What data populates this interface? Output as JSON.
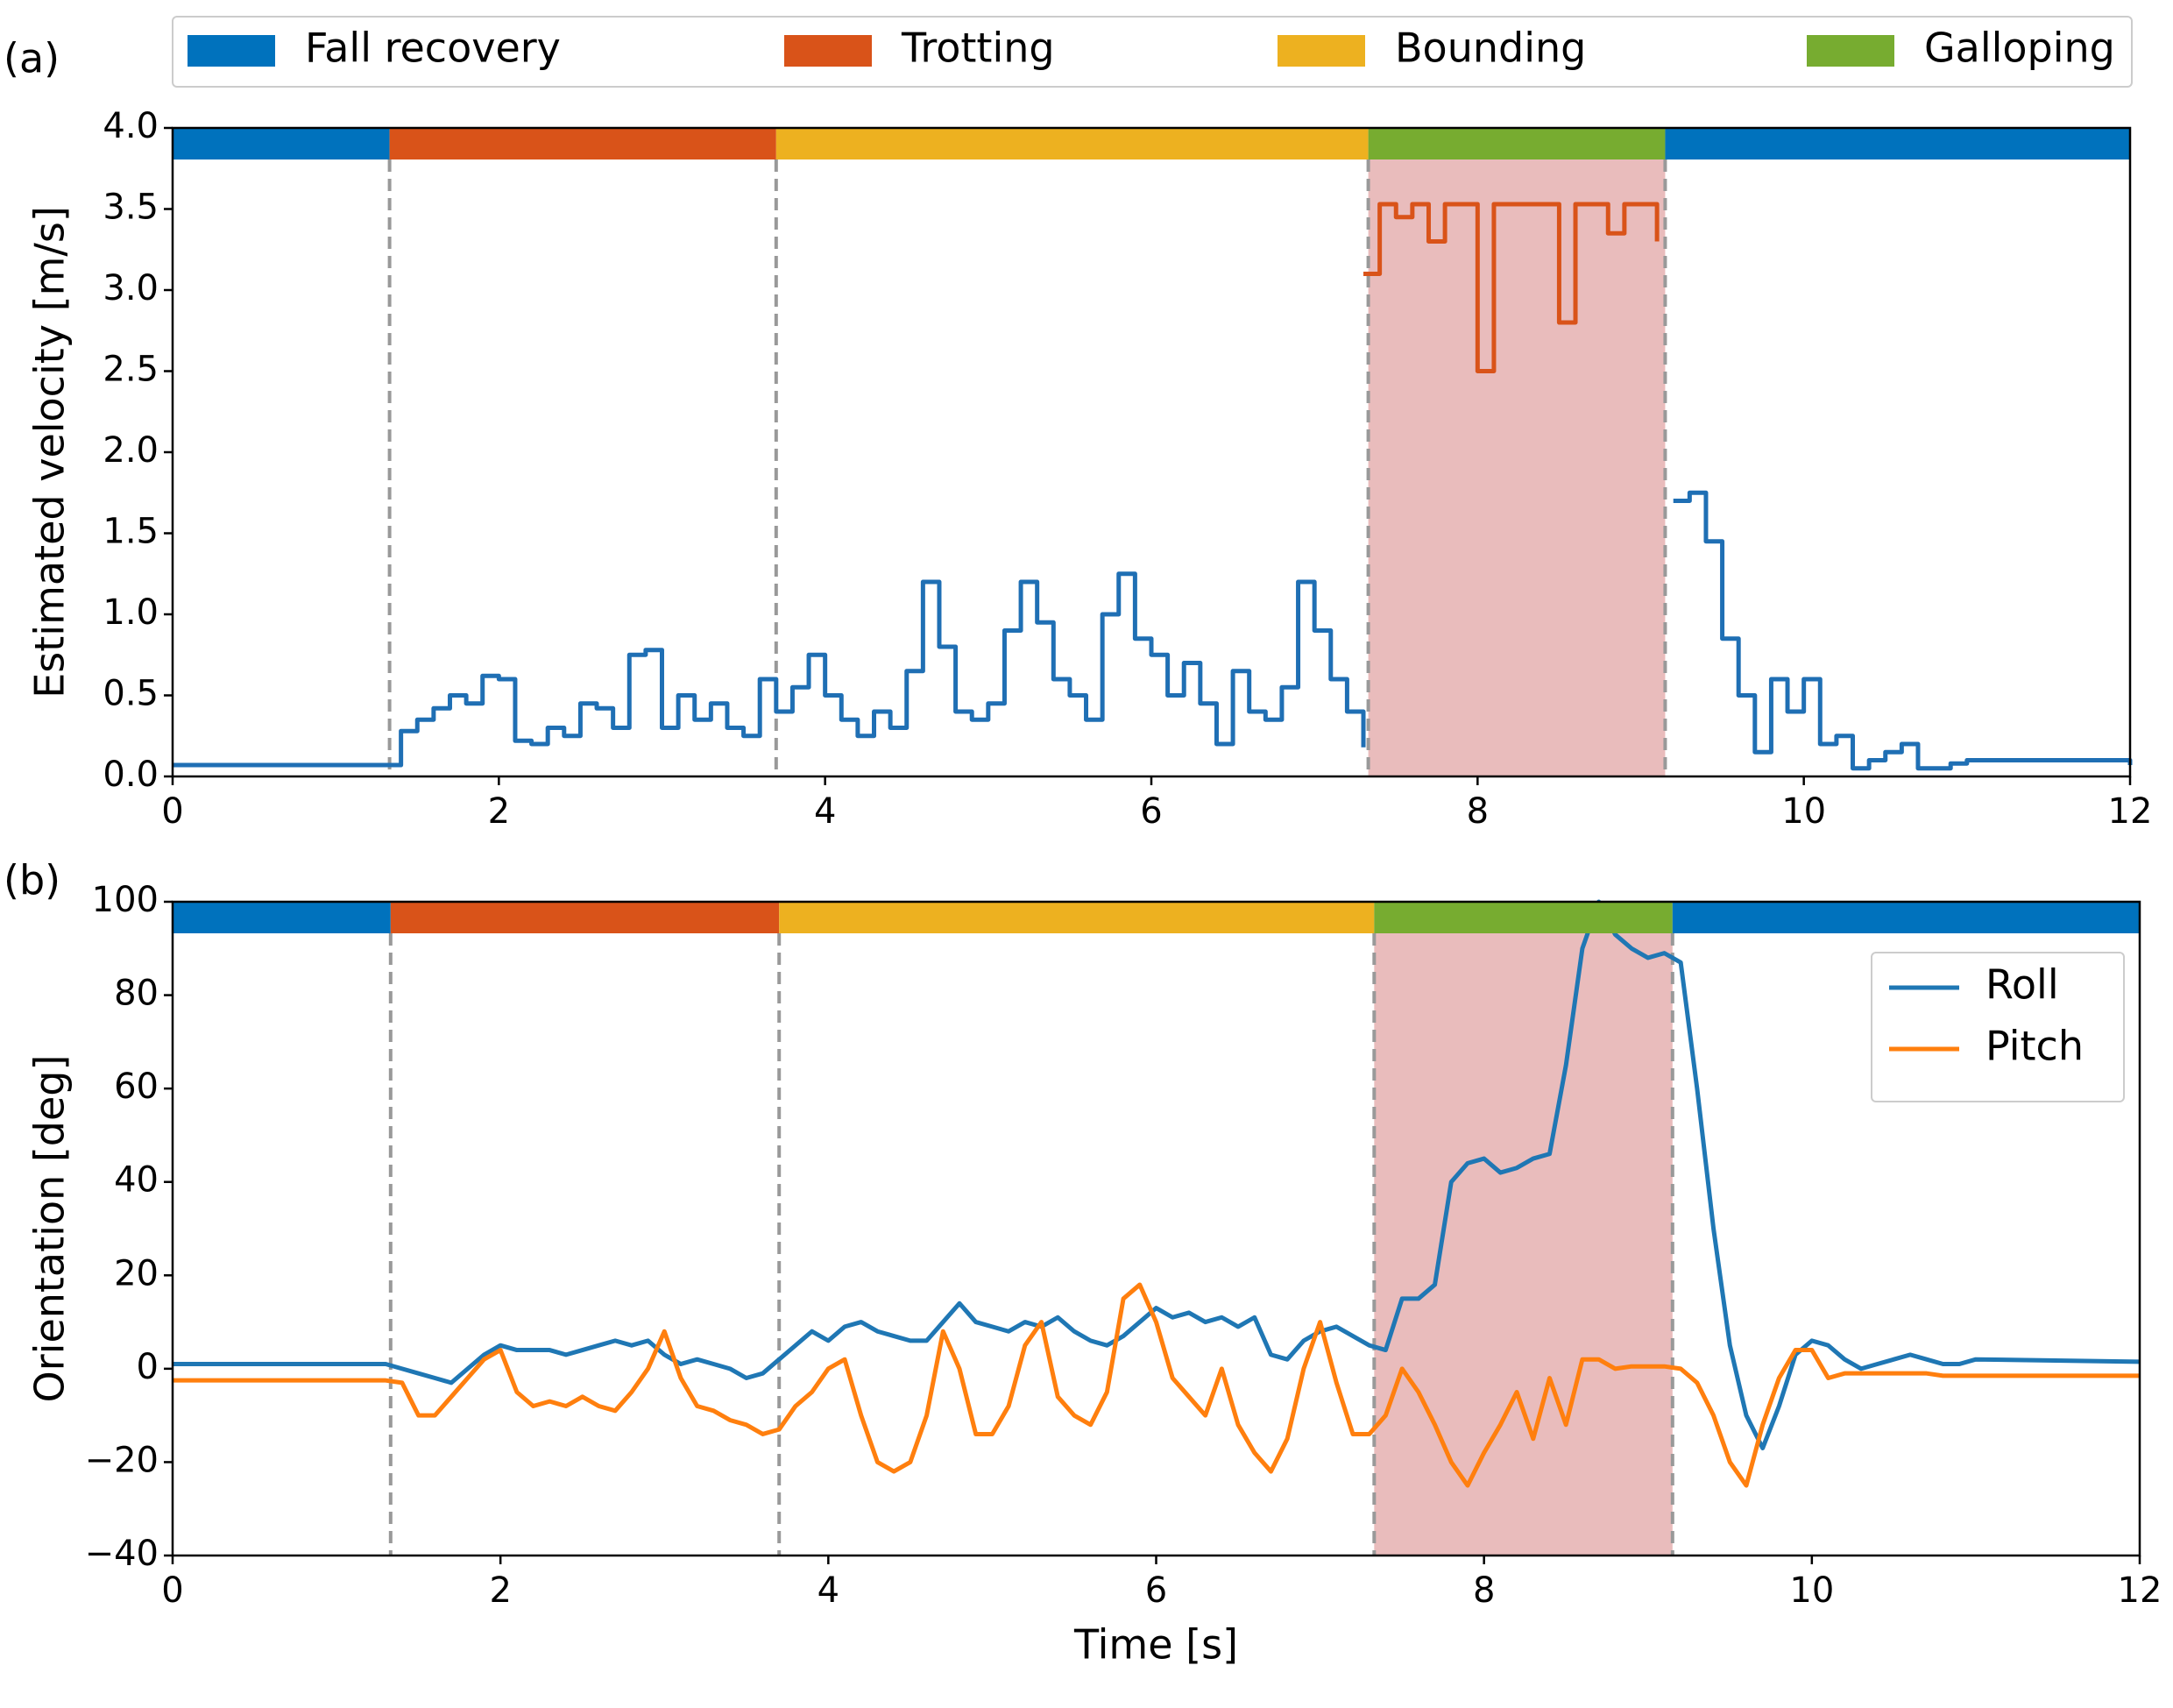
{
  "phase_legend": [
    {
      "name": "Fall recovery",
      "color": "#0072bd"
    },
    {
      "name": "Trotting",
      "color": "#d95319"
    },
    {
      "name": "Bounding",
      "color": "#edb120"
    },
    {
      "name": "Galloping",
      "color": "#77ac30"
    }
  ],
  "phases": [
    {
      "start": 0,
      "end": 1.33,
      "color": "#0072bd"
    },
    {
      "start": 1.33,
      "end": 3.7,
      "color": "#d95319"
    },
    {
      "start": 3.7,
      "end": 7.33,
      "color": "#edb120"
    },
    {
      "start": 7.33,
      "end": 9.15,
      "color": "#77ac30"
    },
    {
      "start": 9.15,
      "end": 12,
      "color": "#0072bd"
    }
  ],
  "chart_data": [
    {
      "type": "line",
      "label": "(a)",
      "drawstyle": "steps-post",
      "ylabel": "Estimated velocity [m/s]",
      "xlim": [
        0,
        12
      ],
      "xticks": [
        0,
        2,
        4,
        6,
        8,
        10,
        12
      ],
      "ylim": [
        0,
        4
      ],
      "yticks": [
        {
          "value": 0,
          "label": "0.0"
        },
        0.5,
        {
          "value": 1,
          "label": "1.0"
        },
        1.5,
        {
          "value": 2,
          "label": "2.0"
        },
        2.5,
        {
          "value": 3,
          "label": "3.0"
        },
        3.5,
        {
          "value": 4,
          "label": "4.0"
        }
      ],
      "highlight": [
        7.33,
        9.15
      ],
      "highlight_color": "#e9bcbc",
      "vlines": [
        1.33,
        3.7,
        7.33,
        9.15
      ],
      "x": [
        0,
        1.3,
        1.4,
        1.5,
        1.6,
        1.7,
        1.8,
        1.9,
        2.0,
        2.1,
        2.2,
        2.3,
        2.4,
        2.5,
        2.6,
        2.7,
        2.8,
        2.9,
        3.0,
        3.1,
        3.2,
        3.3,
        3.4,
        3.5,
        3.6,
        3.7,
        3.8,
        3.9,
        4.0,
        4.1,
        4.2,
        4.3,
        4.4,
        4.5,
        4.6,
        4.7,
        4.8,
        4.9,
        5.0,
        5.1,
        5.2,
        5.3,
        5.4,
        5.5,
        5.6,
        5.7,
        5.8,
        5.9,
        6.0,
        6.1,
        6.2,
        6.3,
        6.4,
        6.5,
        6.6,
        6.7,
        6.8,
        6.9,
        7.0,
        7.1,
        7.2,
        7.3,
        7.4,
        7.5,
        7.6,
        7.7,
        7.8,
        7.9,
        8.0,
        8.1,
        8.2,
        8.3,
        8.4,
        8.5,
        8.6,
        8.7,
        8.8,
        8.9,
        9.0,
        9.1,
        9.2,
        9.3,
        9.4,
        9.5,
        9.6,
        9.7,
        9.8,
        9.9,
        10.0,
        10.1,
        10.2,
        10.3,
        10.4,
        10.5,
        10.6,
        10.7,
        10.8,
        10.9,
        11.0,
        12
      ],
      "series": [
        {
          "color": "#1f6fb4",
          "values": [
            0.07,
            0.07,
            0.28,
            0.35,
            0.42,
            0.5,
            0.45,
            0.62,
            0.6,
            0.22,
            0.2,
            0.3,
            0.25,
            0.45,
            0.42,
            0.3,
            0.75,
            0.78,
            0.3,
            0.5,
            0.35,
            0.45,
            0.3,
            0.25,
            0.6,
            0.4,
            0.55,
            0.75,
            0.5,
            0.35,
            0.25,
            0.4,
            0.3,
            0.65,
            1.2,
            0.8,
            0.4,
            0.35,
            0.45,
            0.9,
            1.2,
            0.95,
            0.6,
            0.5,
            0.35,
            1.0,
            1.25,
            0.85,
            0.75,
            0.5,
            0.7,
            0.45,
            0.2,
            0.65,
            0.4,
            0.35,
            0.55,
            1.2,
            0.9,
            0.6,
            0.4,
            0.18,
            null,
            null,
            null,
            null,
            null,
            null,
            null,
            null,
            null,
            null,
            null,
            null,
            null,
            null,
            null,
            null,
            null,
            null,
            1.7,
            1.75,
            1.45,
            0.85,
            0.5,
            0.15,
            0.6,
            0.4,
            0.6,
            0.2,
            0.25,
            0.05,
            0.1,
            0.15,
            0.2,
            0.05,
            0.05,
            0.08,
            0.1,
            0.07
          ]
        },
        {
          "color": "#d95319",
          "values": [
            null,
            null,
            null,
            null,
            null,
            null,
            null,
            null,
            null,
            null,
            null,
            null,
            null,
            null,
            null,
            null,
            null,
            null,
            null,
            null,
            null,
            null,
            null,
            null,
            null,
            null,
            null,
            null,
            null,
            null,
            null,
            null,
            null,
            null,
            null,
            null,
            null,
            null,
            null,
            null,
            null,
            null,
            null,
            null,
            null,
            null,
            null,
            null,
            null,
            null,
            null,
            null,
            null,
            null,
            null,
            null,
            null,
            null,
            null,
            null,
            null,
            3.1,
            3.53,
            3.45,
            3.53,
            3.3,
            3.53,
            3.53,
            2.5,
            3.53,
            3.53,
            3.53,
            3.53,
            2.8,
            3.53,
            3.53,
            3.35,
            3.53,
            3.53,
            3.3,
            null,
            null,
            null,
            null,
            null,
            null,
            null,
            null,
            null,
            null,
            null,
            null,
            null,
            null,
            null,
            null,
            null,
            null,
            null,
            null
          ]
        }
      ]
    },
    {
      "type": "line",
      "label": "(b)",
      "ylabel": "Orientation [deg]",
      "xlabel": "Time [s]",
      "xlim": [
        0,
        12
      ],
      "xticks": [
        0,
        2,
        4,
        6,
        8,
        10,
        12
      ],
      "ylim": [
        -40,
        100
      ],
      "yticks": [
        {
          "value": -40,
          "label": "−40"
        },
        {
          "value": -20,
          "label": "−20"
        },
        0,
        20,
        40,
        60,
        80,
        100
      ],
      "highlight": [
        7.33,
        9.15
      ],
      "highlight_color": "#e9bcbc",
      "vlines": [
        1.33,
        3.7,
        7.33,
        9.15
      ],
      "legend": "upper right",
      "x": [
        0,
        1.3,
        1.4,
        1.5,
        1.6,
        1.7,
        1.8,
        1.9,
        2.0,
        2.1,
        2.2,
        2.3,
        2.4,
        2.5,
        2.6,
        2.7,
        2.8,
        2.9,
        3.0,
        3.1,
        3.2,
        3.3,
        3.4,
        3.5,
        3.6,
        3.7,
        3.8,
        3.9,
        4.0,
        4.1,
        4.2,
        4.3,
        4.4,
        4.5,
        4.6,
        4.7,
        4.8,
        4.9,
        5.0,
        5.1,
        5.2,
        5.3,
        5.4,
        5.5,
        5.6,
        5.7,
        5.8,
        5.9,
        6.0,
        6.1,
        6.2,
        6.3,
        6.4,
        6.5,
        6.6,
        6.7,
        6.8,
        6.9,
        7.0,
        7.1,
        7.2,
        7.3,
        7.4,
        7.5,
        7.6,
        7.7,
        7.8,
        7.9,
        8.0,
        8.1,
        8.2,
        8.3,
        8.4,
        8.5,
        8.6,
        8.7,
        8.8,
        8.9,
        9.0,
        9.1,
        9.2,
        9.3,
        9.4,
        9.5,
        9.6,
        9.7,
        9.8,
        9.9,
        10.0,
        10.1,
        10.2,
        10.3,
        10.4,
        10.5,
        10.6,
        10.7,
        10.8,
        10.9,
        11.0,
        12
      ],
      "series": [
        {
          "name": "Roll",
          "color": "#1f77b4",
          "values": [
            1,
            1,
            0,
            -1,
            -2,
            -3,
            0,
            3,
            5,
            4,
            4,
            4,
            3,
            4,
            5,
            6,
            5,
            6,
            3,
            1,
            2,
            1,
            0,
            -2,
            -1,
            2,
            5,
            8,
            6,
            9,
            10,
            8,
            7,
            6,
            6,
            10,
            14,
            10,
            9,
            8,
            10,
            9,
            11,
            8,
            6,
            5,
            7,
            10,
            13,
            11,
            12,
            10,
            11,
            9,
            11,
            3,
            2,
            6,
            8,
            9,
            7,
            5,
            4,
            15,
            15,
            18,
            40,
            44,
            45,
            42,
            43,
            45,
            46,
            65,
            90,
            100,
            93,
            90,
            88,
            89,
            87,
            60,
            30,
            5,
            -10,
            -17,
            -8,
            3,
            6,
            5,
            2,
            0,
            1,
            2,
            3,
            2,
            1,
            1,
            2,
            1.5
          ]
        },
        {
          "name": "Pitch",
          "color": "#ff7f0e",
          "values": [
            -2.5,
            -2.5,
            -3,
            -10,
            -10,
            -6,
            -2,
            2,
            4,
            -5,
            -8,
            -7,
            -8,
            -6,
            -8,
            -9,
            -5,
            0,
            8,
            -2,
            -8,
            -9,
            -11,
            -12,
            -14,
            -13,
            -8,
            -5,
            0,
            2,
            -10,
            -20,
            -22,
            -20,
            -10,
            8,
            0,
            -14,
            -14,
            -8,
            5,
            10,
            -6,
            -10,
            -12,
            -5,
            15,
            18,
            10,
            -2,
            -6,
            -10,
            0,
            -12,
            -18,
            -22,
            -15,
            0,
            10,
            -3,
            -14,
            -14,
            -10,
            0,
            -5,
            -12,
            -20,
            -25,
            -18,
            -12,
            -5,
            -15,
            -2,
            -12,
            2,
            2,
            0,
            0.5,
            0.5,
            0.5,
            0,
            -3,
            -10,
            -20,
            -25,
            -12,
            -2,
            4,
            4,
            -2,
            -1,
            -1,
            -1,
            -1,
            -1,
            -1,
            -1.5,
            -1.5,
            -1.5,
            -1.5
          ]
        }
      ]
    }
  ]
}
